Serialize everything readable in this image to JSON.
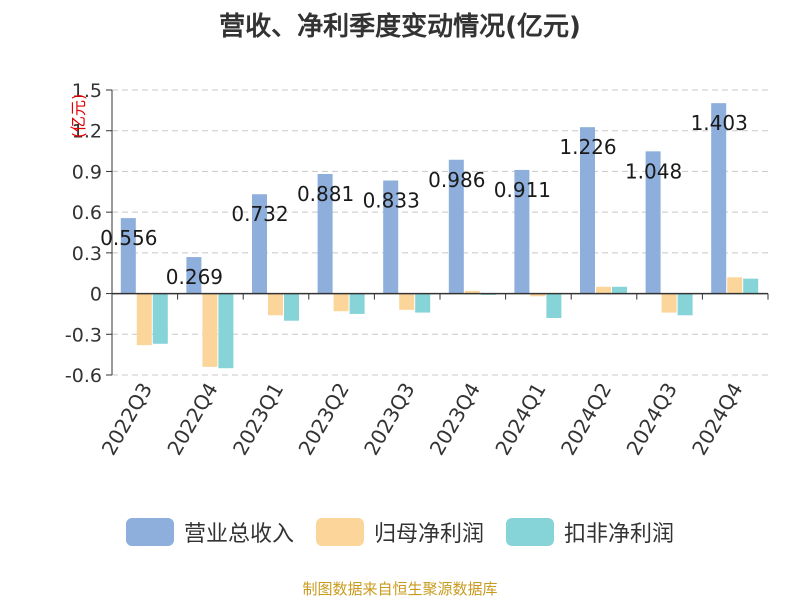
{
  "chart_data": {
    "type": "bar",
    "title": "营收、净利季度变动情况(亿元)",
    "ylabel": "(亿元)",
    "xlabel": "",
    "ylim": [
      -0.6,
      1.5
    ],
    "yticks": [
      "1.5",
      "1.2",
      "0.9",
      "0.6",
      "0.3",
      "0",
      "-0.3",
      "-0.6"
    ],
    "categories": [
      "2022Q3",
      "2022Q4",
      "2023Q1",
      "2023Q2",
      "2023Q3",
      "2023Q4",
      "2024Q1",
      "2024Q2",
      "2024Q3",
      "2024Q4"
    ],
    "series": [
      {
        "name": "营业总收入",
        "color": "#8eaedc",
        "values": [
          0.556,
          0.269,
          0.732,
          0.881,
          0.833,
          0.986,
          0.911,
          1.226,
          1.048,
          1.403
        ],
        "labels": [
          "0.556",
          "0.269",
          "0.732",
          "0.881",
          "0.833",
          "0.986",
          "0.911",
          "1.226",
          "1.048",
          "1.403"
        ]
      },
      {
        "name": "归母净利润",
        "color": "#fcd59a",
        "values": [
          -0.38,
          -0.54,
          -0.16,
          -0.13,
          -0.12,
          0.02,
          -0.02,
          0.05,
          -0.14,
          0.12
        ]
      },
      {
        "name": "扣非净利润",
        "color": "#86d4d8",
        "values": [
          -0.37,
          -0.55,
          -0.2,
          -0.15,
          -0.14,
          -0.01,
          -0.18,
          0.05,
          -0.16,
          0.11
        ]
      }
    ],
    "grid": true,
    "legend": "bottom"
  },
  "source": "制图数据来自恒生聚源数据库"
}
